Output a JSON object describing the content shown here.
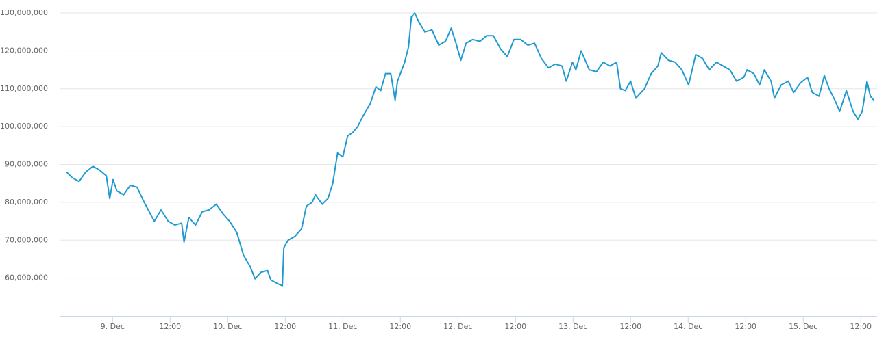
{
  "chart_data": {
    "type": "line",
    "x": [
      -9.6,
      -8.4,
      -7.0,
      -5.6,
      -4.1,
      -2.7,
      -1.3,
      -0.6,
      0.1,
      0.9,
      2.3,
      3.7,
      5.1,
      6.6,
      8.7,
      10.1,
      11.6,
      13.0,
      14.4,
      14.9,
      15.9,
      17.3,
      18.7,
      20.1,
      21.6,
      23.0,
      24.4,
      25.9,
      27.3,
      28.7,
      29.7,
      30.9,
      32.3,
      33.0,
      34.4,
      35.4,
      35.7,
      36.6,
      38.0,
      39.4,
      40.4,
      41.6,
      42.3,
      43.7,
      44.9,
      45.9,
      46.9,
      48.0,
      49.0,
      50.1,
      51.1,
      52.3,
      53.7,
      54.9,
      55.9,
      56.9,
      58.0,
      58.9,
      59.4,
      60.9,
      61.7,
      62.3,
      63.0,
      63.7,
      65.1,
      66.6,
      68.0,
      69.4,
      70.6,
      71.6,
      72.6,
      73.7,
      75.1,
      76.6,
      78.0,
      79.4,
      80.9,
      82.3,
      83.7,
      85.1,
      86.6,
      88.0,
      89.4,
      90.9,
      92.3,
      93.7,
      94.6,
      95.9,
      96.6,
      97.7,
      99.4,
      100.9,
      102.3,
      103.7,
      105.1,
      105.9,
      106.9,
      108.0,
      109.1,
      110.9,
      112.3,
      113.7,
      114.4,
      115.9,
      117.3,
      118.7,
      120.1,
      121.6,
      123.0,
      124.4,
      125.9,
      127.3,
      128.7,
      130.1,
      131.6,
      132.3,
      133.7,
      134.9,
      135.9,
      137.3,
      138.0,
      139.4,
      140.9,
      142.0,
      143.4,
      144.9,
      145.9,
      147.3,
      148.4,
      149.4,
      150.6,
      151.6,
      153.0,
      154.4,
      155.4,
      156.3,
      157.3,
      158.0,
      158.7
    ],
    "series": [
      {
        "color": "#1f9ad1",
        "values": [
          88000000,
          86500000,
          85500000,
          88000000,
          89500000,
          88500000,
          87000000,
          81000000,
          86000000,
          83000000,
          82000000,
          84500000,
          84000000,
          80000000,
          75000000,
          78000000,
          75000000,
          74000000,
          74500000,
          69500000,
          76000000,
          74000000,
          77500000,
          78000000,
          79500000,
          77000000,
          75000000,
          72000000,
          66000000,
          63000000,
          59800000,
          61500000,
          62000000,
          59500000,
          58500000,
          58000000,
          68000000,
          70000000,
          71000000,
          73000000,
          79000000,
          80000000,
          82000000,
          79500000,
          81000000,
          85000000,
          93000000,
          92000000,
          97500000,
          98500000,
          100000000,
          103000000,
          106000000,
          110500000,
          109500000,
          114000000,
          114000000,
          107000000,
          112000000,
          117000000,
          121000000,
          129000000,
          130000000,
          128000000,
          125000000,
          125500000,
          121500000,
          122500000,
          126000000,
          122000000,
          117500000,
          122000000,
          123000000,
          122500000,
          124000000,
          124000000,
          120500000,
          118500000,
          123000000,
          123000000,
          121500000,
          122000000,
          118000000,
          115500000,
          116500000,
          116000000,
          112000000,
          117000000,
          115000000,
          120000000,
          115000000,
          114500000,
          117000000,
          116000000,
          117000000,
          110000000,
          109500000,
          112000000,
          107500000,
          110000000,
          114000000,
          116000000,
          119500000,
          117500000,
          117000000,
          115000000,
          111000000,
          119000000,
          118000000,
          115000000,
          117000000,
          116000000,
          115000000,
          112000000,
          113000000,
          115000000,
          114000000,
          111000000,
          115000000,
          112000000,
          107500000,
          111000000,
          112000000,
          109000000,
          111500000,
          113000000,
          109000000,
          108000000,
          113500000,
          110000000,
          107000000,
          104000000,
          109500000,
          104000000,
          102000000,
          104000000,
          112000000,
          108000000,
          107000000
        ]
      }
    ],
    "xlim": [
      -10.9,
      159.4
    ],
    "xticks": [
      {
        "value": 0,
        "label": "9. Dec"
      },
      {
        "value": 12,
        "label": "12:00"
      },
      {
        "value": 24,
        "label": "10. Dec"
      },
      {
        "value": 36,
        "label": "12:00"
      },
      {
        "value": 48,
        "label": "11. Dec"
      },
      {
        "value": 60,
        "label": "12:00"
      },
      {
        "value": 72,
        "label": "12. Dec"
      },
      {
        "value": 84,
        "label": "12:00"
      },
      {
        "value": 96,
        "label": "13. Dec"
      },
      {
        "value": 108,
        "label": "12:00"
      },
      {
        "value": 120,
        "label": "14. Dec"
      },
      {
        "value": 132,
        "label": "12:00"
      },
      {
        "value": 144,
        "label": "15. Dec"
      },
      {
        "value": 156,
        "label": "12:00"
      }
    ],
    "ylim": [
      50000000,
      130000000
    ],
    "yticks": [
      {
        "value": 60000000,
        "label": "60,000,000"
      },
      {
        "value": 70000000,
        "label": "70,000,000"
      },
      {
        "value": 80000000,
        "label": "80,000,000"
      },
      {
        "value": 90000000,
        "label": "90,000,000"
      },
      {
        "value": 100000000,
        "label": "100,000,000"
      },
      {
        "value": 110000000,
        "label": "110,000,000"
      },
      {
        "value": 120000000,
        "label": "120,000,000"
      },
      {
        "value": 130000000,
        "label": "130,000,000"
      }
    ],
    "grid": true
  }
}
